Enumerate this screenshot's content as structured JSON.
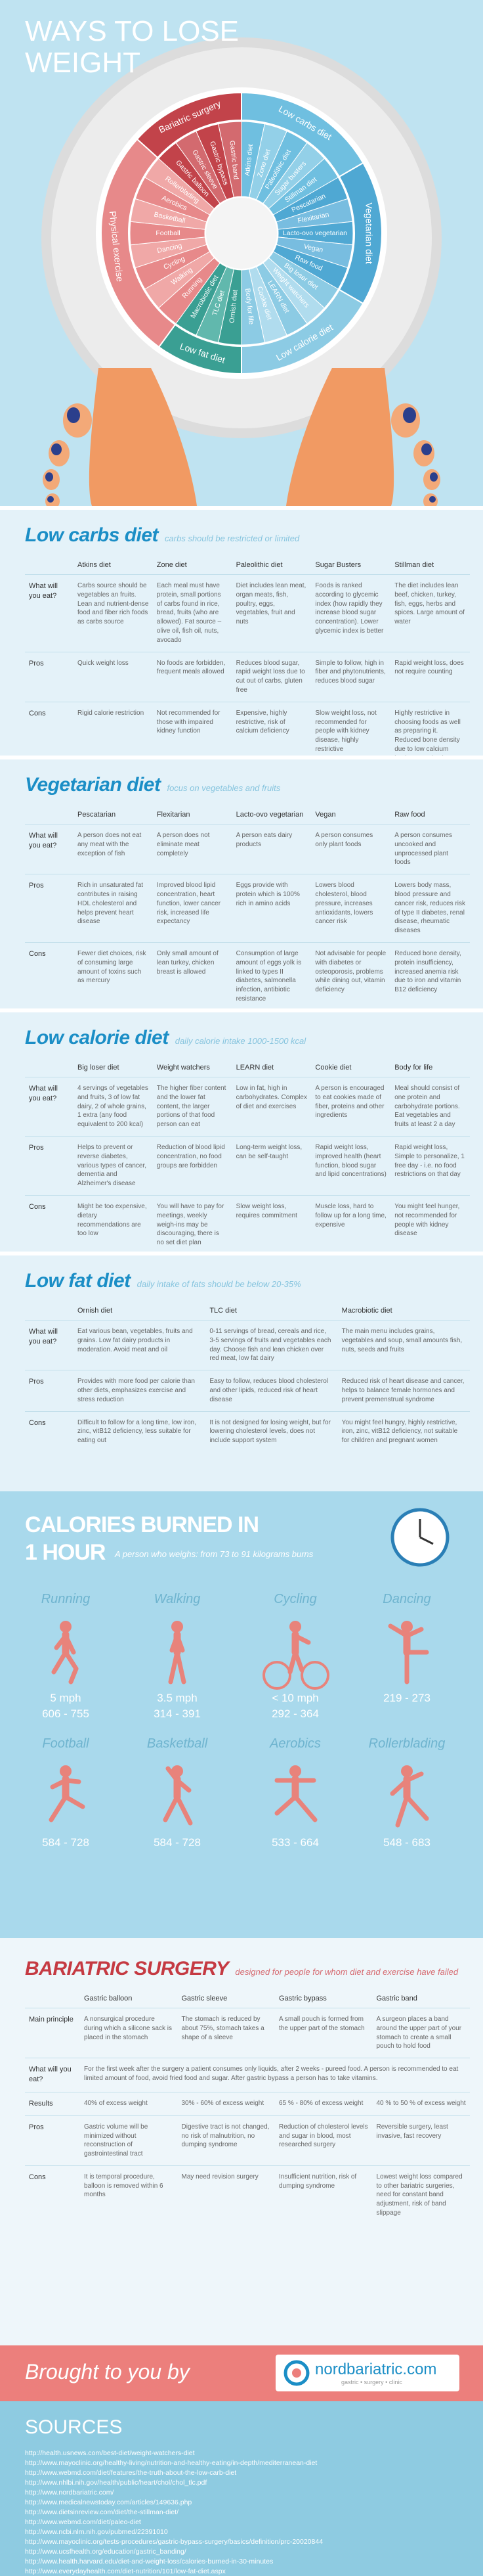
{
  "header": {
    "title_lines": [
      "WAYS TO LOSE",
      "WEIGHT"
    ]
  },
  "wheel": {
    "groups": [
      {
        "name": "Low carbs diet",
        "items": [
          "Atkins diet",
          "Zone diet",
          "Paleolithic diet",
          "Sugar busters",
          "Stillman diet"
        ]
      },
      {
        "name": "Vegetarian diet",
        "items": [
          "Pescatarian",
          "Flexitarian",
          "Lacto-ovo vegetarian",
          "Vegan",
          "Raw food"
        ]
      },
      {
        "name": "Low calorie diet",
        "items": [
          "Big loser diet",
          "Weight watchers",
          "LEARN diet",
          "Cookie diet",
          "Body for life"
        ]
      },
      {
        "name": "Low fat diet",
        "items": [
          "Ornish diet",
          "TLC diet",
          "Macrobiotic diet"
        ]
      },
      {
        "name": "Physical exercise",
        "items": [
          "Running",
          "Walking",
          "Cycling",
          "Dancing",
          "Football",
          "Basketball",
          "Aerobics",
          "Rollerblading"
        ]
      },
      {
        "name": "Bariatric surgery",
        "items": [
          "Gastric balloon",
          "Gastric sleeve",
          "Gastric bypass",
          "Gastric band"
        ]
      }
    ]
  },
  "diet_sections": [
    {
      "title": "Low carbs diet",
      "subtitle": "carbs should be restricted or limited",
      "columns": [
        "Atkins diet",
        "Zone diet",
        "Paleolithic diet",
        "Sugar Busters",
        "Stillman diet"
      ],
      "rows": [
        {
          "label": "What will you eat?",
          "cells": [
            "Carbs source should be vegetables an fruits. Lean and nutrient-dense food and fiber rich foods as carbs source",
            "Each meal must have protein, small portions of carbs found in rice, bread, fruits (who are allowed). Fat source – olive oil, fish oil, nuts, avocado",
            "Diet includes lean meat, organ meats, fish, poultry, eggs, vegetables, fruit and nuts",
            "Foods is ranked according to glycemic index (how rapidly they increase blood sugar concentration). Lower glycemic index is better",
            "The diet includes lean beef, chicken, turkey, fish, eggs, herbs and spices. Large amount of water"
          ]
        },
        {
          "label": "Pros",
          "cells": [
            "Quick weight loss",
            "No foods are forbidden, frequent meals allowed",
            "Reduces blood sugar, rapid weight loss due to cut out of carbs, gluten free",
            "Simple to follow, high in fiber and phytonutrients, reduces blood sugar",
            "Rapid weight loss, does not require counting"
          ]
        },
        {
          "label": "Cons",
          "cells": [
            "Rigid calorie restriction",
            "Not recommended for those with impaired kidney function",
            "Expensive, highly restrictive, risk of calcium deficiency",
            "Slow weight loss, not recommended for people with kidney disease, highly restrictive",
            "Highly restrictive in choosing foods as well as preparing it. Reduced bone density due to low calcium intake, constipation"
          ]
        }
      ]
    },
    {
      "title": "Vegetarian diet",
      "subtitle": "focus on vegetables and fruits",
      "columns": [
        "Pescatarian",
        "Flexitarian",
        "Lacto-ovo vegetarian",
        "Vegan",
        "Raw food"
      ],
      "rows": [
        {
          "label": "What will you eat?",
          "cells": [
            "A person does not eat any meat with the exception of fish",
            "A person does not eliminate meat completely",
            "A person eats dairy products",
            "A person consumes only plant foods",
            "A person consumes uncooked and unprocessed plant foods"
          ]
        },
        {
          "label": "Pros",
          "cells": [
            "Rich in unsaturated fat contributes in raising HDL cholesterol and helps prevent heart disease",
            "Improved blood lipid concentration, heart function, lower cancer risk, increased life expectancy",
            "Eggs provide with protein which is 100% rich in amino acids",
            "Lowers blood cholesterol, blood pressure, increases antioxidants, lowers cancer risk",
            "Lowers body mass, blood pressure and cancer risk, reduces risk of type II diabetes, renal disease, rheumatic diseases"
          ]
        },
        {
          "label": "Cons",
          "cells": [
            "Fewer diet choices, risk of consuming large amount of toxins such as mercury",
            "Only small amount of lean turkey, chicken breast is allowed",
            "Consumption of large amount of eggs yolk is linked to types II diabetes, salmonella infection, antibiotic resistance",
            "Not advisable for people with diabetes or osteoporosis, problems while dining out, vitamin deficiency",
            "Reduced bone density, protein insufficiency, increased anemia risk due to iron and vitamin B12 deficiency"
          ]
        }
      ]
    },
    {
      "title": "Low calorie diet",
      "subtitle": "daily calorie intake 1000-1500 kcal",
      "columns": [
        "Big loser diet",
        "Weight watchers",
        "LEARN diet",
        "Cookie diet",
        "Body for life"
      ],
      "rows": [
        {
          "label": "What will you eat?",
          "cells": [
            "4 servings of vegetables and fruits, 3 of low fat dairy, 2 of whole grains, 1 extra (any food equivalent to 200 kcal)",
            "The higher fiber content and the lower fat content, the larger portions of that food person can eat",
            "Low in fat, high in carbohydrates. Complex of diet and exercises",
            "A person is encouraged to eat cookies made of fiber, proteins and other ingredients",
            "Meal should consist of one protein and carbohydrate portions. Eat vegetables and fruits at least 2 a day"
          ]
        },
        {
          "label": "Pros",
          "cells": [
            "Helps to prevent or reverse diabetes, various types of cancer, dementia and Alzheimer's disease",
            "Reduction of blood lipid concentration, no food groups are forbidden",
            "Long-term weight loss, can be self-taught",
            "Rapid weight loss, improved health (heart function, blood sugar and lipid concentrations)",
            "Rapid weight loss, Simple to personalize, 1 free day - i.e. no food restrictions on that day"
          ]
        },
        {
          "label": "Cons",
          "cells": [
            "Might be too expensive, dietary recommendations are too low",
            "You will have to pay for meetings, weekly weigh-ins may be discouraging, there is no set diet plan",
            "Slow weight loss, requires commitment",
            "Muscle loss, hard to follow up for a long time, expensive",
            "You might feel hunger, not recommended for people with kidney disease"
          ]
        }
      ]
    },
    {
      "title": "Low fat diet",
      "subtitle": "daily intake of fats should be below 20-35%",
      "columns": [
        "Ornish diet",
        "TLC diet",
        "Macrobiotic diet"
      ],
      "rows": [
        {
          "label": "What will you eat?",
          "cells": [
            "Eat various bean, vegetables, fruits and grains. Low fat dairy products in moderation. Avoid meat and oil",
            "0-11 servings of bread, cereals and rice, 3-5 servings of fruits and vegetables each day. Choose fish and lean chicken over red meat, low fat dairy",
            "The main menu includes grains, vegetables and soup, small amounts fish, nuts, seeds and fruits"
          ]
        },
        {
          "label": "Pros",
          "cells": [
            "Provides with more food per calorie than other diets, emphasizes exercise and stress reduction",
            "Easy to follow, reduces blood cholesterol and other lipids, reduced risk of heart disease",
            "Reduced risk of heart disease and cancer, helps to balance female hormones and prevent premenstrual syndrome"
          ]
        },
        {
          "label": "Cons",
          "cells": [
            "Difficult to follow for a long time, low iron, zinc, vitB12 deficiency, less suitable for eating out",
            "It is not designed for losing weight, but for lowering cholesterol levels, does not include support system",
            "You might feel hungry, highly restrictive, iron, zinc, vitB12 deficiency, not suitable for children and pregnant women"
          ]
        }
      ]
    }
  ],
  "calories": {
    "title_lines": [
      "CALORIES BURNED IN",
      "1 HOUR"
    ],
    "subtitle": "A person who weighs: from 73 to 91 kilograms burns",
    "activities": [
      {
        "name": "Running",
        "speed": "5 mph",
        "kcal": "606 - 755"
      },
      {
        "name": "Walking",
        "speed": "3.5 mph",
        "kcal": "314 - 391"
      },
      {
        "name": "Cycling",
        "speed": "< 10 mph",
        "kcal": "292 - 364"
      },
      {
        "name": "Dancing",
        "kcal": "219 - 273"
      },
      {
        "name": "Football",
        "kcal": "584 - 728"
      },
      {
        "name": "Basketball",
        "kcal": "584 - 728"
      },
      {
        "name": "Aerobics",
        "kcal": "533 - 664"
      },
      {
        "name": "Rollerblading",
        "kcal": "548 - 683"
      }
    ]
  },
  "bariatric": {
    "title": "BARIATRIC SURGERY",
    "subtitle": "designed for people for whom diet and exercise have failed",
    "columns": [
      "Gastric balloon",
      "Gastric sleeve",
      "Gastric bypass",
      "Gastric band"
    ],
    "rows": [
      {
        "label": "Main principle",
        "cells": [
          "A nonsurgical procedure during which a silicone sack is placed in the stomach",
          "The stomach is reduced by about 75%, stomach takes a shape of a sleeve",
          "A small pouch is formed from the upper part of the stomach",
          "A surgeon places a band around the upper part of your stomach to create a small pouch to hold food"
        ]
      },
      {
        "label": "What will you eat?",
        "cells": [
          "For the first week after the surgery a patient consumes only liquids, after 2 weeks - pureed food. A person is recommended to eat limited amount of food, avoid fried food and sugar. After gastric bypass a person has to take vitamins."
        ]
      },
      {
        "label": "Results",
        "cells": [
          "40% of excess weight",
          "30% - 60% of excess weight",
          "65 % - 80% of excess weight",
          "40 % to 50 % of excess weight"
        ]
      },
      {
        "label": "Pros",
        "cells": [
          "Gastric volume will be minimized without reconstruction of gastrointestinal tract",
          "Digestive tract is not changed, no risk of malnutrition, no dumping syndrome",
          "Reduction of cholesterol levels and sugar in blood, most researched surgery",
          "Reversible surgery, least invasive, fast recovery"
        ]
      },
      {
        "label": "Cons",
        "cells": [
          "It is temporal procedure, balloon is removed within 6 months",
          "May need revision surgery",
          "Insufficient nutrition, risk of dumping syndrome",
          "Lowest weight loss compared to other bariatric surgeries, need for constant band adjustment, risk of band slippage"
        ]
      }
    ]
  },
  "footer": {
    "brought_by": "Brought to you by",
    "logo": "nordbariatric.com",
    "tagline": "gastric • surgery • clinic"
  },
  "sources": {
    "title": "SOURCES",
    "links": [
      "http://health.usnews.com/best-diet/weight-watchers-diet",
      "http://www.mayoclinic.org/healthy-living/nutrition-and-healthy-eating/in-depth/mediterranean-diet",
      "http://www.webmd.com/diet/features/the-truth-about-the-low-carb-diet",
      "http://www.nhlbi.nih.gov/health/public/heart/chol/chol_tlc.pdf",
      "http://www.nordbariatric.com/",
      "http://www.medicalnewstoday.com/articles/149636.php",
      "http://www.dietsinreview.com/diet/the-stillman-diet/",
      "http://www.webmd.com/diet/paleo-diet",
      "http://www.ncbi.nlm.nih.gov/pubmed/22391010",
      "http://www.mayoclinic.org/tests-procedures/gastric-bypass-surgery/basics/definition/prc-20020844",
      "http://www.ucsfhealth.org/education/gastric_banding/",
      "http://www.health.harvard.edu/diet-and-weight-loss/calories-burned-in-30-minutes",
      "http://www.everydayhealth.com/diet-nutrition/101/low-fat-diet.aspx"
    ]
  }
}
